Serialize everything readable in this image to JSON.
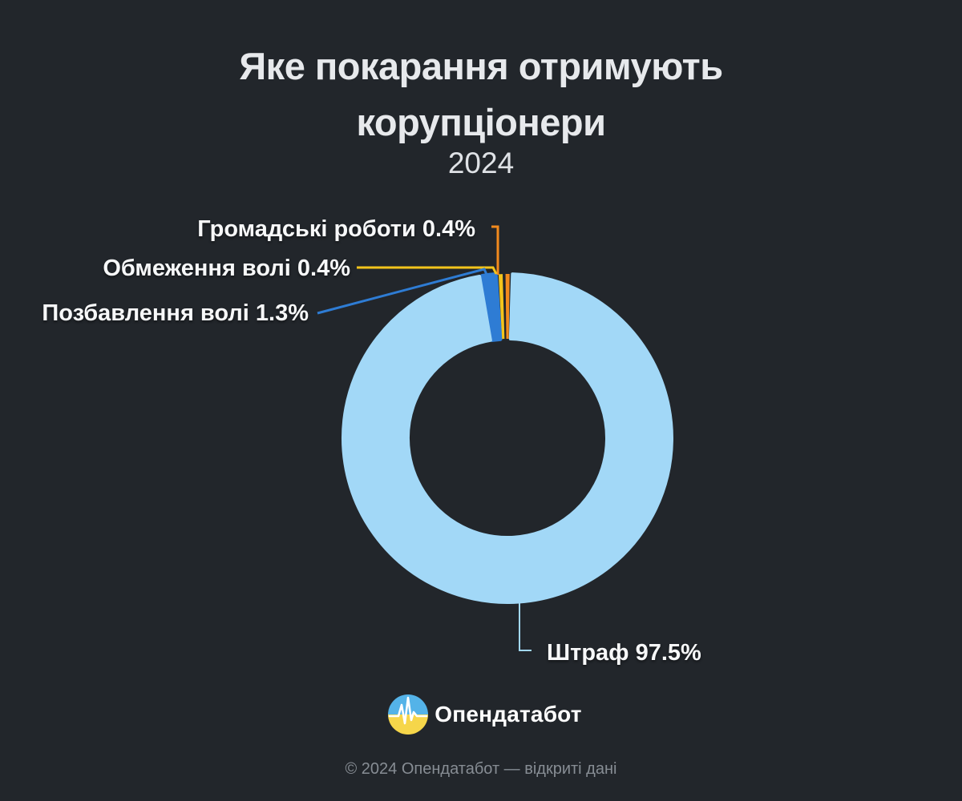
{
  "header": {
    "title_line1": "Яке покарання отримують",
    "title_line2": "корупціонери",
    "year": "2024"
  },
  "chart_data": {
    "type": "pie",
    "donut": true,
    "title": "Яке покарання отримують корупціонери",
    "subtitle": "2024",
    "unit": "%",
    "legend_position": "callout-labels",
    "background_color": "#22262b",
    "slices": [
      {
        "id": "community",
        "label": "Громадські роботи",
        "value": 0.4,
        "color": "#f28a1d",
        "callout_text": "Громадські роботи 0.4%"
      },
      {
        "id": "restriction",
        "label": "Обмеження волі",
        "value": 0.4,
        "color": "#f3c41c",
        "callout_text": "Обмеження волі 0.4%"
      },
      {
        "id": "imprisonment",
        "label": "Позбавлення волі",
        "value": 1.3,
        "color": "#2e7cd4",
        "callout_text": "Позбавлення волі 1.3%"
      },
      {
        "id": "fine",
        "label": "Штраф",
        "value": 97.5,
        "color": "#a2d8f7",
        "callout_text": "Штраф 97.5%"
      }
    ]
  },
  "brand": {
    "name": "Опендатабот",
    "logo_blue": "#54b3e8",
    "logo_yellow": "#f6d64a"
  },
  "footer": {
    "copyright": "© 2024 Опендатабот — відкриті дані"
  }
}
